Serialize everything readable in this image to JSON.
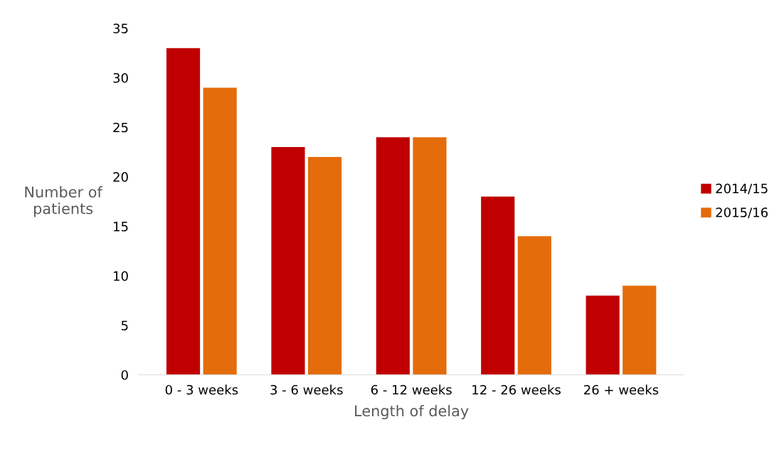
{
  "chart_data": {
    "type": "bar",
    "xlabel": "Length of delay",
    "ylabel": "Number of\npatients",
    "categories": [
      "0 - 3 weeks",
      "3 - 6 weeks",
      "6 - 12 weeks",
      "12 - 26 weeks",
      "26 + weeks"
    ],
    "series": [
      {
        "name": "2014/15",
        "color": "#c00000",
        "values": [
          33,
          23,
          24,
          18,
          8
        ]
      },
      {
        "name": "2015/16",
        "color": "#e46c0a",
        "values": [
          29,
          22,
          24,
          14,
          9
        ]
      }
    ],
    "ylim": [
      0,
      35
    ],
    "yticks": [
      0,
      5,
      10,
      15,
      20,
      25,
      30,
      35
    ],
    "grid": false,
    "legend": "right"
  }
}
